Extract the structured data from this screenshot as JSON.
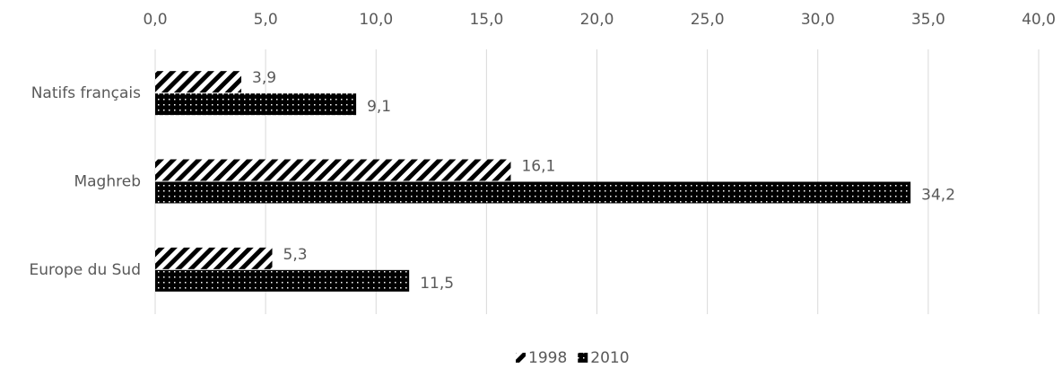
{
  "chart_data": {
    "type": "bar",
    "orientation": "horizontal",
    "categories": [
      "Natifs français",
      "Maghreb",
      "Europe du Sud"
    ],
    "series": [
      {
        "name": "1998",
        "color": "#000000",
        "pattern": "diagonal-hatch",
        "values": [
          3.9,
          16.1,
          5.3
        ],
        "value_labels": [
          "3,9",
          "16,1",
          "5,3"
        ]
      },
      {
        "name": "2010",
        "color": "#000000",
        "pattern": "dots",
        "values": [
          9.1,
          34.2,
          11.5
        ],
        "value_labels": [
          "9,1",
          "34,2",
          "11,5"
        ]
      }
    ],
    "xlim": [
      0,
      40
    ],
    "xticks": [
      {
        "value": 0,
        "label": "0,0"
      },
      {
        "value": 5,
        "label": "5,0"
      },
      {
        "value": 10,
        "label": "10,0"
      },
      {
        "value": 15,
        "label": "15,0"
      },
      {
        "value": 20,
        "label": "20,0"
      },
      {
        "value": 25,
        "label": "25,0"
      },
      {
        "value": 30,
        "label": "30,0"
      },
      {
        "value": 35,
        "label": "35,0"
      },
      {
        "value": 40,
        "label": "40,0"
      }
    ],
    "grid": true,
    "legend": "bottom"
  }
}
